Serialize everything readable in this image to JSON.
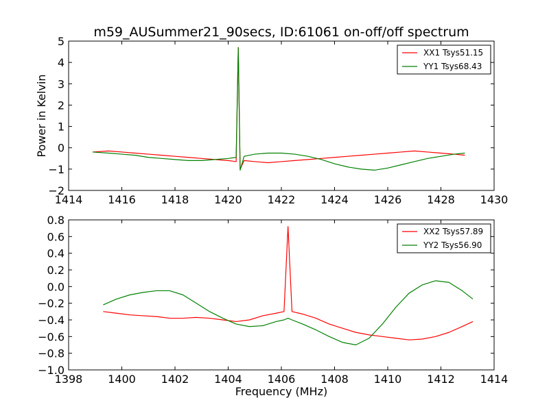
{
  "figure": {
    "title": "m59_AUSummer21_90secs, ID:61061 on-off/off spectrum",
    "xlabel": "Frequency (MHz)"
  },
  "chart_data": [
    {
      "type": "line",
      "ylabel": "Power in Kelvin",
      "xlim": [
        1414,
        1430
      ],
      "ylim": [
        -2,
        5
      ],
      "xticks": [
        1414,
        1416,
        1418,
        1420,
        1422,
        1424,
        1426,
        1428,
        1430
      ],
      "yticks": [
        -2,
        -1,
        0,
        1,
        2,
        3,
        4,
        5
      ],
      "legend": "top-right",
      "series": [
        {
          "name": "XX1 Tsys51.15",
          "color": "#ff0000",
          "x": [
            1414.9,
            1415.5,
            1416.0,
            1416.5,
            1417.0,
            1417.5,
            1418.0,
            1418.5,
            1419.0,
            1419.5,
            1420.0,
            1420.3,
            1420.38,
            1420.45,
            1420.6,
            1421.0,
            1421.5,
            1422.0,
            1422.5,
            1423.0,
            1423.5,
            1424.0,
            1424.5,
            1425.0,
            1425.5,
            1426.0,
            1426.5,
            1427.0,
            1427.5,
            1428.0,
            1428.5,
            1428.9
          ],
          "y": [
            -0.2,
            -0.15,
            -0.2,
            -0.25,
            -0.3,
            -0.35,
            -0.4,
            -0.45,
            -0.5,
            -0.55,
            -0.6,
            -0.65,
            4.7,
            -1.0,
            -0.6,
            -0.65,
            -0.7,
            -0.65,
            -0.6,
            -0.55,
            -0.5,
            -0.45,
            -0.4,
            -0.35,
            -0.3,
            -0.25,
            -0.2,
            -0.15,
            -0.2,
            -0.25,
            -0.3,
            -0.35
          ]
        },
        {
          "name": "YY1 Tsys68.43",
          "color": "#008000",
          "x": [
            1414.9,
            1415.5,
            1416.0,
            1416.5,
            1417.0,
            1417.5,
            1418.0,
            1418.5,
            1419.0,
            1419.5,
            1420.0,
            1420.3,
            1420.38,
            1420.45,
            1420.6,
            1421.0,
            1421.5,
            1422.0,
            1422.5,
            1423.0,
            1423.5,
            1424.0,
            1424.5,
            1425.0,
            1425.5,
            1426.0,
            1426.5,
            1427.0,
            1427.5,
            1428.0,
            1428.5,
            1428.9
          ],
          "y": [
            -0.2,
            -0.25,
            -0.3,
            -0.35,
            -0.45,
            -0.5,
            -0.55,
            -0.6,
            -0.6,
            -0.55,
            -0.5,
            -0.45,
            4.7,
            -1.05,
            -0.4,
            -0.3,
            -0.25,
            -0.25,
            -0.3,
            -0.4,
            -0.55,
            -0.75,
            -0.9,
            -1.0,
            -1.05,
            -0.95,
            -0.8,
            -0.65,
            -0.5,
            -0.4,
            -0.3,
            -0.25
          ]
        }
      ]
    },
    {
      "type": "line",
      "ylabel": "",
      "xlim": [
        1398,
        1414
      ],
      "ylim": [
        -1.0,
        0.8
      ],
      "xticks": [
        1398,
        1400,
        1402,
        1404,
        1406,
        1408,
        1410,
        1412,
        1414
      ],
      "yticks": [
        -1.0,
        -0.8,
        -0.6,
        -0.4,
        -0.2,
        0.0,
        0.2,
        0.4,
        0.6,
        0.8
      ],
      "legend": "top-right",
      "series": [
        {
          "name": "XX2 Tsys57.89",
          "color": "#ff0000",
          "x": [
            1399.3,
            1399.8,
            1400.3,
            1400.8,
            1401.3,
            1401.8,
            1402.3,
            1402.8,
            1403.3,
            1403.8,
            1404.3,
            1404.8,
            1405.3,
            1405.8,
            1406.1,
            1406.25,
            1406.4,
            1406.8,
            1407.3,
            1407.8,
            1408.3,
            1408.8,
            1409.3,
            1409.8,
            1410.3,
            1410.8,
            1411.3,
            1411.8,
            1412.3,
            1412.8,
            1413.2
          ],
          "y": [
            -0.3,
            -0.32,
            -0.34,
            -0.35,
            -0.36,
            -0.38,
            -0.38,
            -0.37,
            -0.38,
            -0.4,
            -0.42,
            -0.4,
            -0.35,
            -0.32,
            -0.3,
            0.72,
            -0.3,
            -0.33,
            -0.38,
            -0.45,
            -0.5,
            -0.55,
            -0.58,
            -0.6,
            -0.62,
            -0.64,
            -0.63,
            -0.6,
            -0.55,
            -0.48,
            -0.42
          ]
        },
        {
          "name": "YY2 Tsys56.90",
          "color": "#008000",
          "x": [
            1399.3,
            1399.8,
            1400.3,
            1400.8,
            1401.3,
            1401.8,
            1402.3,
            1402.8,
            1403.3,
            1403.8,
            1404.3,
            1404.8,
            1405.3,
            1405.8,
            1406.1,
            1406.25,
            1406.4,
            1406.8,
            1407.3,
            1407.8,
            1408.3,
            1408.8,
            1409.3,
            1409.8,
            1410.3,
            1410.8,
            1411.3,
            1411.8,
            1412.3,
            1412.8,
            1413.2
          ],
          "y": [
            -0.22,
            -0.15,
            -0.1,
            -0.07,
            -0.05,
            -0.05,
            -0.1,
            -0.2,
            -0.3,
            -0.38,
            -0.45,
            -0.48,
            -0.47,
            -0.42,
            -0.4,
            -0.38,
            -0.4,
            -0.45,
            -0.52,
            -0.6,
            -0.67,
            -0.7,
            -0.62,
            -0.45,
            -0.25,
            -0.08,
            0.02,
            0.07,
            0.05,
            -0.05,
            -0.15
          ]
        }
      ]
    }
  ]
}
